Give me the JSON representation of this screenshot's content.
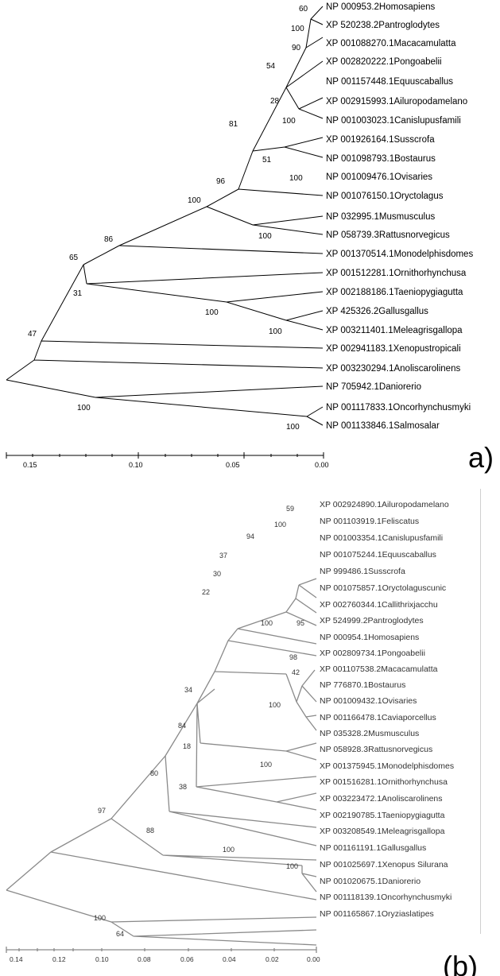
{
  "panel_a": {
    "label": "a)",
    "taxa": [
      "NP 000953.2Homosapiens",
      "XP 520238.2Pantroglodytes",
      "XP 001088270.1Macacamulatta",
      "XP 002820222.1Pongoabelii",
      "NP 001157448.1Equuscaballus",
      "XP 002915993.1Ailuropodamelano",
      "NP 001003023.1Canislupusfamili",
      "XP 001926164.1Susscrofa",
      "NP 001098793.1Bostaurus",
      "NP 001009476.1Ovisaries",
      "NP 001076150.1Oryctolagus",
      "NP 032995.1Musmusculus",
      "NP 058739.3Rattusnorvegicus",
      "XP 001370514.1Monodelphisdomes",
      "XP 001512281.1Ornithorhynchusa",
      "XP 002188186.1Taeniopygiagutta",
      "XP 425326.2Gallusgallus",
      "XP 003211401.1Meleagrisgallopa",
      "XP 002941183.1Xenopustropicali",
      "XP 003230294.1Anoliscarolinens",
      "NP 705942.1Daniorerio",
      "NP 001117833.1Oncorhynchusmyki",
      "NP 001133846.1Salmosalar"
    ],
    "bootstraps": [
      "60",
      "100",
      "90",
      "54",
      "28",
      "100",
      "81",
      "51",
      "100",
      "96",
      "100",
      "100",
      "86",
      "65",
      "31",
      "100",
      "100",
      "47",
      "100",
      "100"
    ],
    "axis_ticks": [
      "0.15",
      "0.10",
      "0.05",
      "0.00"
    ]
  },
  "panel_b": {
    "label": "(b)",
    "taxa": [
      "XP 002924890.1Ailuropodamelano",
      "NP 001103919.1Feliscatus",
      "NP 001003354.1Canislupusfamili",
      "NP 001075244.1Equuscaballus",
      "NP 999486.1Susscrofa",
      "NP 001075857.1Oryctolaguscunic",
      "XP 002760344.1Callithrixjacchu",
      "XP 524999.2Pantroglodytes",
      "NP 000954.1Homosapiens",
      "XP 002809734.1Pongoabelii",
      "XP 001107538.2Macacamulatta",
      "NP 776870.1Bostaurus",
      "NP 001009432.1Ovisaries",
      "NP 001166478.1Caviaporcellus",
      "NP 035328.2Musmusculus",
      "NP 058928.3Rattusnorvegicus",
      "XP 001375945.1Monodelphisdomes",
      "XP 001516281.1Ornithorhynchusa",
      "XP 003223472.1Anoliscarolinens",
      "XP 002190785.1Taeniopygiagutta",
      "XP 003208549.1Meleagrisgallopa",
      "NP 001161191.1Gallusgallus",
      "NP 001025697.1Xenopus Silurana",
      "NP 001020675.1Daniorerio",
      "NP 001118139.1Oncorhynchusmyki",
      "NP 001165867.1Oryziaslatipes"
    ],
    "bootstraps": [
      "59",
      "100",
      "94",
      "37",
      "30",
      "22",
      "95",
      "100",
      "98",
      "42",
      "34",
      "100",
      "84",
      "18",
      "100",
      "80",
      "38",
      "97",
      "88",
      "100",
      "100",
      "100",
      "64"
    ],
    "axis_ticks": [
      "0.14",
      "0.12",
      "0.10",
      "0.08",
      "0.06",
      "0.04",
      "0.02",
      "0.00"
    ]
  }
}
